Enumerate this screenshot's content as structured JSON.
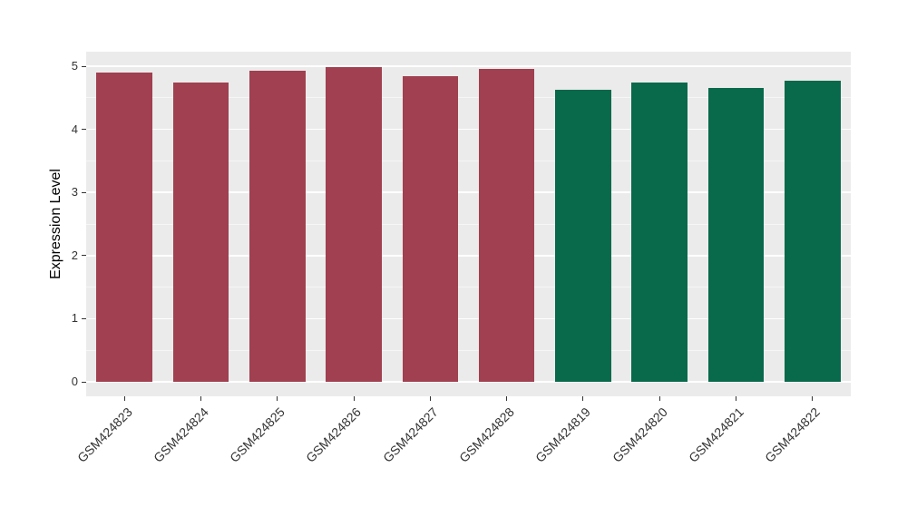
{
  "chart_data": {
    "type": "bar",
    "title": "",
    "xlabel": "",
    "ylabel": "Expression Level",
    "ylim": [
      0,
      5
    ],
    "yticks": [
      0,
      1,
      2,
      3,
      4,
      5
    ],
    "categories": [
      "GSM424823",
      "GSM424824",
      "GSM424825",
      "GSM424826",
      "GSM424827",
      "GSM424828",
      "GSM424819",
      "GSM424820",
      "GSM424821",
      "GSM424822"
    ],
    "values": [
      4.9,
      4.74,
      4.93,
      4.98,
      4.84,
      4.95,
      4.63,
      4.74,
      4.66,
      4.77
    ],
    "bar_colors": [
      "#A04050",
      "#A04050",
      "#A04050",
      "#A04050",
      "#A04050",
      "#A04050",
      "#08694B",
      "#08694B",
      "#08694B",
      "#08694B"
    ],
    "group_colors": {
      "red_group": "#A04050",
      "green_group": "#08694B"
    },
    "panel_background": "#EBEBEB",
    "grid_color": "#FFFFFF",
    "tick_label_color": "#333333",
    "grid": "on",
    "legend_position": "none"
  }
}
